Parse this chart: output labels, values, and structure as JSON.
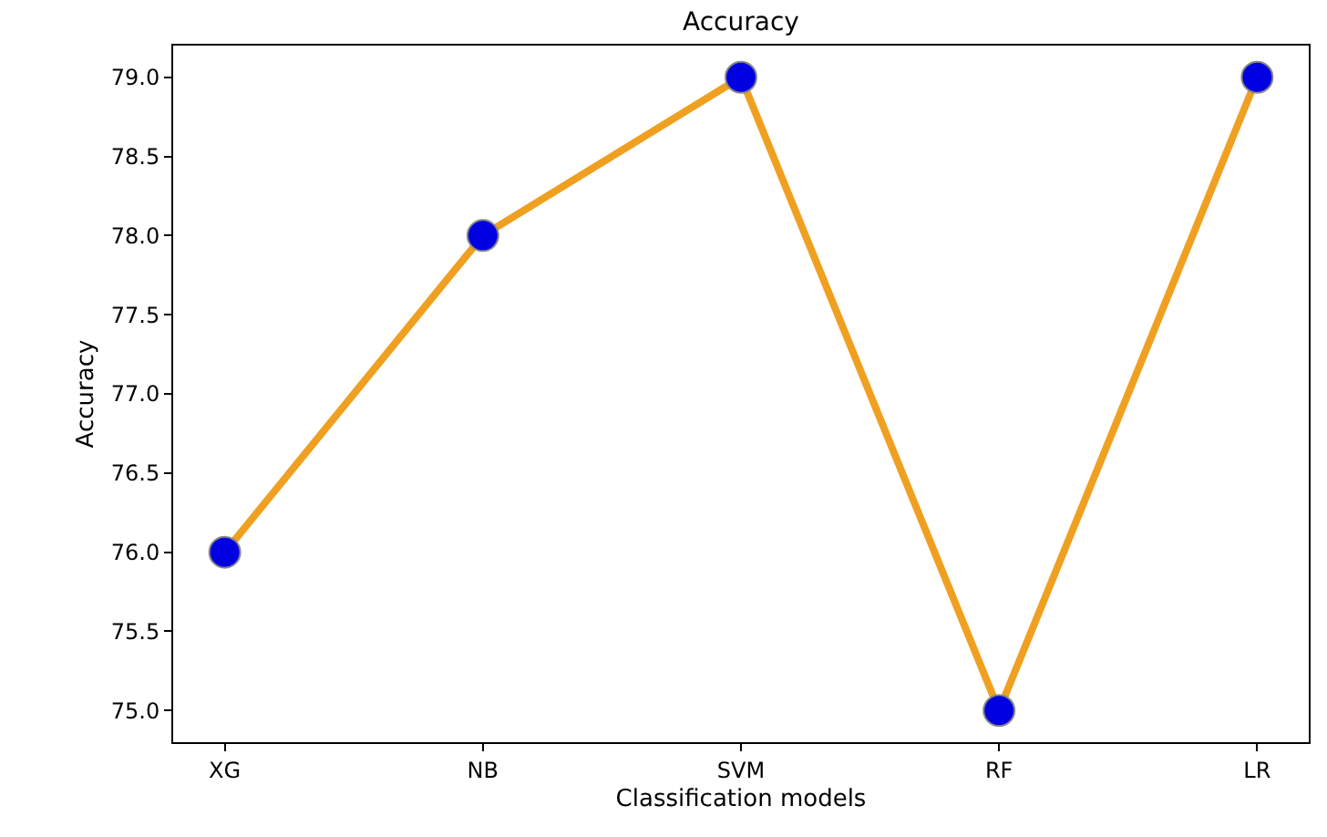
{
  "chart_data": {
    "type": "line",
    "title": "Accuracy",
    "xlabel": "Classification models",
    "ylabel": "Accuracy",
    "categories": [
      "XG",
      "NB",
      "SVM",
      "RF",
      "LR"
    ],
    "series": [
      {
        "color": "#f0a020",
        "colors": [
          "#0000e0",
          "#0000e0",
          "#0000e0",
          "#0000e0",
          "#0000e0"
        ],
        "values": [
          76.0,
          78.0,
          79.0,
          75.0,
          79.0
        ]
      }
    ],
    "marker": "circle",
    "line_style": "solid",
    "ylim": [
      74.8,
      79.2
    ],
    "yticks": [
      {
        "value": 75,
        "label": "75.0"
      },
      {
        "value": 75.5,
        "label": "75.5"
      },
      {
        "value": 76,
        "label": "76.0"
      },
      {
        "value": 76.5,
        "label": "76.5"
      },
      {
        "value": 77,
        "label": "77.0"
      },
      {
        "value": 77.5,
        "label": "77.5"
      },
      {
        "value": 78,
        "label": "78.0"
      },
      {
        "value": 78.5,
        "label": "78.5"
      },
      {
        "value": 79,
        "label": "79.0"
      }
    ],
    "legend": false
  }
}
